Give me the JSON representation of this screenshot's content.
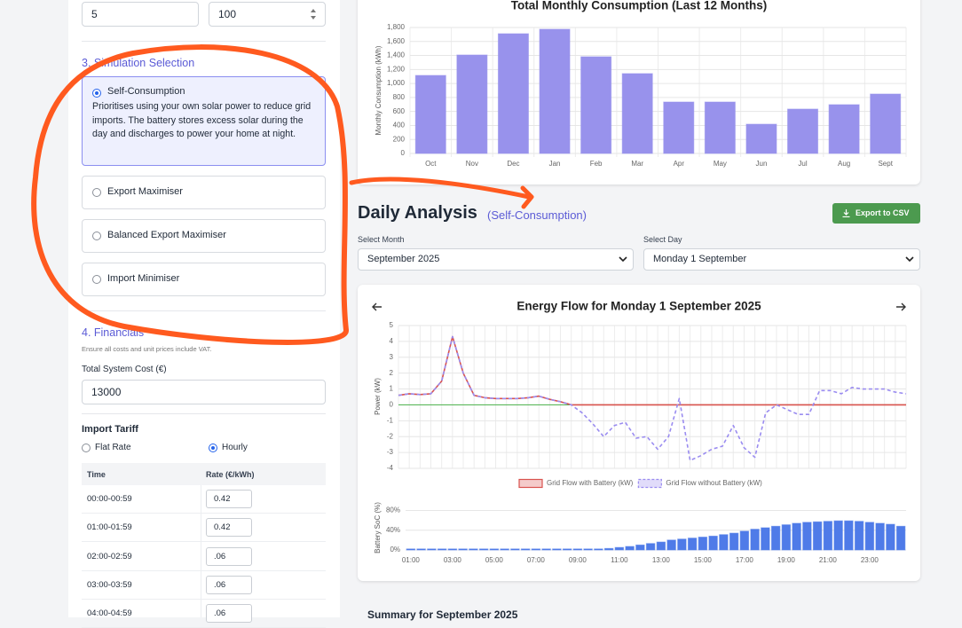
{
  "sidebar": {
    "inputs": [
      "5",
      "100"
    ],
    "simulation": {
      "heading": "3. Simulation Selection",
      "options": [
        {
          "label": "Self-Consumption",
          "description": "Prioritises using your own solar power to reduce grid imports. The battery stores excess solar during the day and discharges to power your home at night.",
          "selected": true
        },
        {
          "label": "Export Maximiser",
          "selected": false
        },
        {
          "label": "Balanced Export Maximiser",
          "selected": false
        },
        {
          "label": "Import Minimiser",
          "selected": false
        }
      ]
    },
    "financials": {
      "heading": "4. Financials",
      "note": "Ensure all costs and unit prices include VAT.",
      "cost_label": "Total System Cost (€)",
      "cost_value": "13000"
    },
    "tariff": {
      "heading": "Import Tariff",
      "options": [
        {
          "label": "Flat Rate",
          "selected": false
        },
        {
          "label": "Hourly",
          "selected": true
        }
      ],
      "table": {
        "header": [
          "Time",
          "Rate (€/kWh)"
        ],
        "rows": [
          [
            "00:00-00:59",
            "0.42"
          ],
          [
            "01:00-01:59",
            "0.42"
          ],
          [
            "02:00-02:59",
            ".06"
          ],
          [
            "03:00-03:59",
            ".06"
          ],
          [
            "04:00-04:59",
            ".06"
          ]
        ]
      }
    }
  },
  "daily": {
    "title": "Daily Analysis",
    "mode": "(Self-Consumption)",
    "export": "Export to CSV",
    "month_label": "Select Month",
    "month_value": "September 2025",
    "day_label": "Select Day",
    "day_value": "Monday 1 September"
  },
  "summary_title": "Summary for September 2025",
  "chart_data": [
    {
      "type": "bar",
      "title": "Total Monthly Consumption (Last 12 Months)",
      "y_label": "Monthly Consumption (kWh)",
      "categories": [
        "Oct",
        "Nov",
        "Dec",
        "Jan",
        "Feb",
        "Mar",
        "Apr",
        "May",
        "Jun",
        "Jul",
        "Aug",
        "Sept"
      ],
      "values": [
        1115,
        1407,
        1711,
        1775,
        1382,
        1141,
        735,
        735,
        418,
        634,
        697,
        849
      ],
      "color": "#9892ec",
      "ylim": [
        0,
        1800
      ],
      "yticks": [
        0,
        200,
        400,
        600,
        800,
        {
          "value": 1000,
          "label": "1,000"
        },
        {
          "value": 1200,
          "label": "1,200"
        },
        {
          "value": 1400,
          "label": "1,400"
        },
        {
          "value": 1600,
          "label": "1,600"
        },
        {
          "value": 1800,
          "label": "1,800"
        }
      ],
      "grid": true
    },
    {
      "type": "line",
      "title": "Energy Flow for Monday 1 September 2025",
      "y_label": "Power (kW)",
      "series": [
        {
          "name": "Grid Flow with Battery (kW)",
          "color": "#d9534f",
          "dashed": false,
          "values": [
            0.6,
            0.7,
            0.65,
            0.7,
            1.5,
            4.3,
            2.0,
            0.6,
            0.45,
            0.4,
            0.4,
            0.4,
            0.45,
            0.55,
            0.35,
            0.2,
            0,
            0,
            0,
            0,
            0,
            0,
            0,
            0,
            0,
            0,
            0,
            0,
            0,
            0,
            0,
            0,
            0,
            0,
            0,
            0,
            0,
            0,
            0,
            0,
            0,
            0,
            0,
            0,
            0,
            0,
            0,
            0
          ]
        },
        {
          "name": "Grid Flow without Battery (kW)",
          "color": "#9a8cf0",
          "dashed": true,
          "values": [
            0.6,
            0.7,
            0.65,
            0.7,
            1.5,
            4.3,
            2.0,
            0.6,
            0.45,
            0.4,
            0.4,
            0.4,
            0.45,
            0.55,
            0.35,
            0.2,
            0,
            -0.5,
            -1.2,
            -2.0,
            -1.3,
            -1.1,
            -2.1,
            -2.0,
            -2.8,
            -2.0,
            0.4,
            -3.5,
            -3.2,
            -2.8,
            -2.6,
            -1.3,
            -2.7,
            -3.3,
            -0.5,
            0,
            -0.3,
            -0.6,
            -0.6,
            0.9,
            0.9,
            0.7,
            1.1,
            1.0,
            1.0,
            1.0,
            0.8,
            0.7
          ]
        }
      ],
      "ylim": [
        -4,
        5
      ],
      "yticks": [
        -4,
        -3,
        -2,
        -1,
        0,
        1,
        2,
        3,
        4,
        5
      ],
      "grid": true,
      "zero_line_color": "#5cb85c",
      "legend": "bottom"
    },
    {
      "type": "bar",
      "y_label": "Battery SoC (%)",
      "categories": [
        "01:00",
        null,
        null,
        null,
        "03:00",
        null,
        null,
        null,
        "05:00",
        null,
        null,
        null,
        "07:00",
        null,
        null,
        null,
        "09:00",
        null,
        null,
        null,
        "11:00",
        null,
        null,
        null,
        "13:00",
        null,
        null,
        null,
        "15:00",
        null,
        null,
        null,
        "17:00",
        null,
        null,
        null,
        "19:00",
        null,
        null,
        null,
        "21:00",
        null,
        null,
        null,
        "23:00",
        null,
        null,
        null
      ],
      "values": [
        2,
        2,
        2,
        2,
        2,
        2,
        2,
        2,
        2,
        2,
        2,
        2,
        2,
        2,
        2,
        2,
        2,
        2,
        2,
        3,
        5,
        7,
        10,
        13,
        16,
        20,
        22,
        24,
        26,
        28,
        31,
        34,
        38,
        42,
        45,
        48,
        51,
        54,
        56,
        57,
        58,
        59,
        59,
        58,
        56,
        54,
        52,
        48
      ],
      "color": "#4f7be8",
      "ylim": [
        0,
        90
      ],
      "yticks": [
        {
          "value": 0,
          "label": "0%"
        },
        {
          "value": 40,
          "label": "40%"
        },
        {
          "value": 80,
          "label": "80%"
        }
      ],
      "grid": true
    }
  ]
}
